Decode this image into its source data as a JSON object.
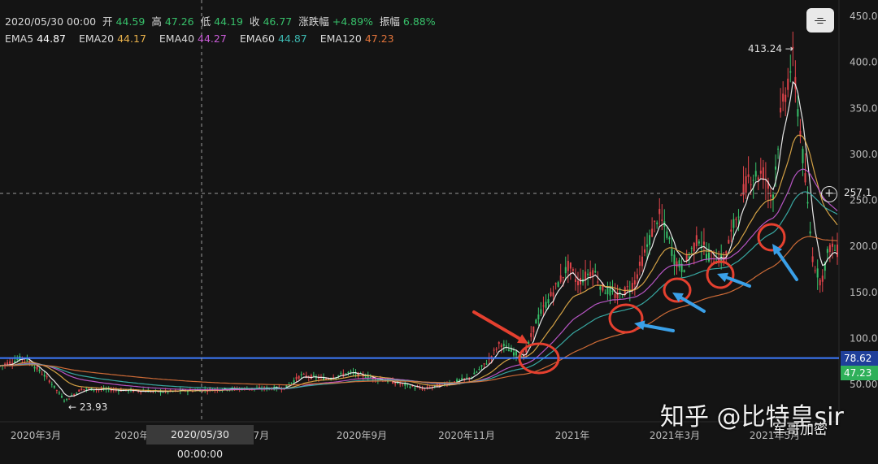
{
  "header": {
    "date": "2020/05/30 00:00",
    "open_label": "开",
    "open": "44.59",
    "high_label": "高",
    "high": "47.26",
    "low_label": "低",
    "low": "44.19",
    "close_label": "收",
    "close": "46.77",
    "change_label": "涨跌幅",
    "change": "+4.89%",
    "amplitude_label": "振幅",
    "amplitude": "6.88%"
  },
  "ema": [
    {
      "label": "EMA5",
      "value": "44.87",
      "color": "#ffffff"
    },
    {
      "label": "EMA20",
      "value": "44.17",
      "color": "#e8b04a"
    },
    {
      "label": "EMA40",
      "value": "44.27",
      "color": "#c85cd6"
    },
    {
      "label": "EMA60",
      "value": "44.87",
      "color": "#3cb7b0"
    },
    {
      "label": "EMA120",
      "value": "47.23",
      "color": "#e0733a"
    }
  ],
  "crosshair": {
    "date_label": "2020/05/30 00:00:00",
    "price_label": "257.1"
  },
  "right_labels": {
    "level_price": "78.62",
    "ema120_price": "47.23"
  },
  "watermark": {
    "main": "知乎 @比特皇sir",
    "sub": "军哥加密"
  },
  "colors": {
    "up": "#37c06a",
    "down": "#e0444a",
    "level_line": "#3d7bff",
    "annotation_circle": "#e5402f",
    "arrow_red": "#e5402f",
    "arrow_blue": "#3aa0e8"
  },
  "chart_data": {
    "type": "candlestick",
    "y_axis": {
      "range": [
        50,
        450
      ],
      "ticks": [
        "450.00",
        "400.00",
        "350.00",
        "300.00",
        "250.00",
        "200.00",
        "150.00",
        "100.00",
        "50.00"
      ]
    },
    "x_axis": {
      "ticks": [
        "2020年3月",
        "2020年5月",
        "2020年7月",
        "2020年9月",
        "2020年11月",
        "2021年",
        "2021年3月",
        "2021年5月"
      ]
    },
    "annotations": {
      "high": "413.24 →",
      "low": "← 23.93"
    },
    "horizontal_level": 78.62,
    "price_path": [
      [
        0,
        70
      ],
      [
        0.03,
        80
      ],
      [
        0.06,
        55
      ],
      [
        0.08,
        32
      ],
      [
        0.1,
        45
      ],
      [
        0.14,
        44
      ],
      [
        0.2,
        42
      ],
      [
        0.28,
        45
      ],
      [
        0.35,
        46
      ],
      [
        0.37,
        60
      ],
      [
        0.4,
        56
      ],
      [
        0.43,
        63
      ],
      [
        0.46,
        57
      ],
      [
        0.5,
        49
      ],
      [
        0.52,
        45
      ],
      [
        0.56,
        53
      ],
      [
        0.58,
        58
      ],
      [
        0.6,
        75
      ],
      [
        0.615,
        95
      ],
      [
        0.63,
        85
      ],
      [
        0.645,
        80
      ],
      [
        0.66,
        120
      ],
      [
        0.68,
        150
      ],
      [
        0.7,
        180
      ],
      [
        0.71,
        160
      ],
      [
        0.73,
        175
      ],
      [
        0.74,
        155
      ],
      [
        0.76,
        145
      ],
      [
        0.78,
        160
      ],
      [
        0.8,
        210
      ],
      [
        0.81,
        235
      ],
      [
        0.82,
        215
      ],
      [
        0.83,
        185
      ],
      [
        0.84,
        175
      ],
      [
        0.85,
        195
      ],
      [
        0.86,
        210
      ],
      [
        0.87,
        190
      ],
      [
        0.89,
        185
      ],
      [
        0.91,
        245
      ],
      [
        0.92,
        275
      ],
      [
        0.94,
        280
      ],
      [
        0.95,
        250
      ],
      [
        0.96,
        340
      ],
      [
        0.975,
        405
      ],
      [
        0.985,
        320
      ],
      [
        0.995,
        230
      ],
      [
        1.0,
        185
      ],
      [
        1.01,
        160
      ],
      [
        1.02,
        200
      ],
      [
        1.03,
        195
      ]
    ]
  }
}
